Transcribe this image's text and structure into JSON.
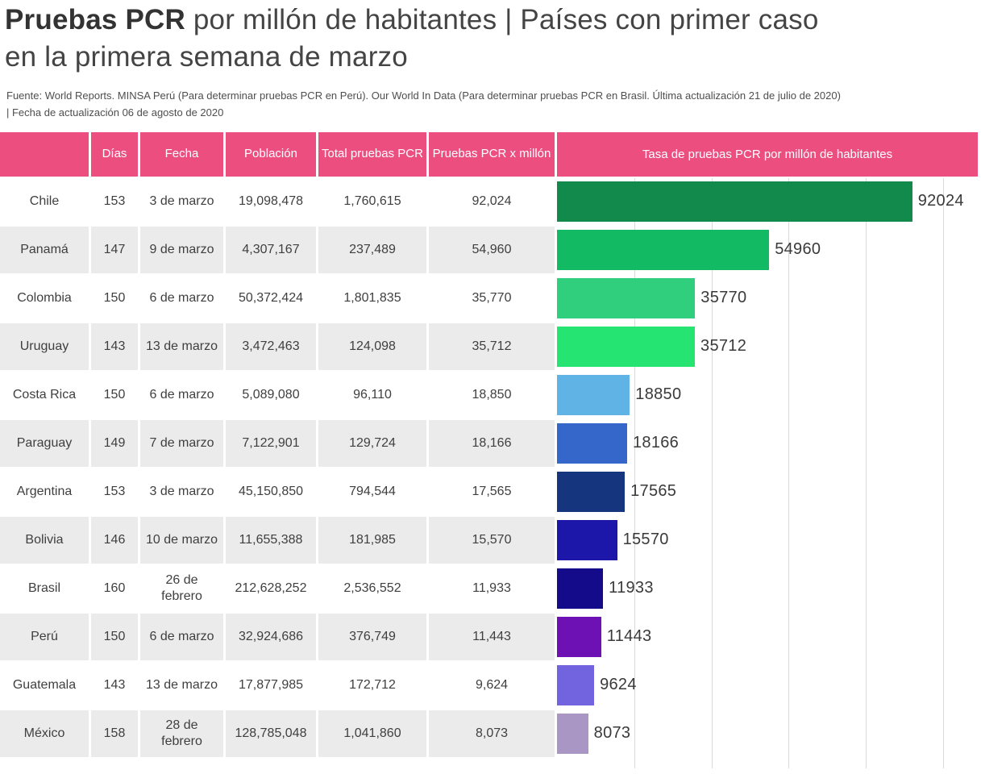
{
  "title": {
    "bold": "Pruebas PCR",
    "rest": " por millón de habitantes | Países con primer caso en la primera semana de marzo"
  },
  "source": {
    "line1": "Fuente: World Reports. MINSA Perú (Para determinar pruebas PCR en Perú). Our World In Data (Para determinar pruebas PCR en Brasil. Última actualización 21 de julio de 2020)",
    "line2": "| Fecha de actualización 06 de agosto de 2020"
  },
  "colors": {
    "header_bg": "#ec4e80",
    "header_text": "#ffffff",
    "row_alt_bg": "#ebebeb",
    "row_bg": "#ffffff",
    "gridline": "#d9d9d9",
    "body_text": "#3f3f3f"
  },
  "table": {
    "headers": [
      "",
      "Días",
      "Fecha",
      "Población",
      "Total pruebas PCR",
      "Pruebas PCR x millón"
    ],
    "rows": [
      {
        "country": "Chile",
        "dias": "153",
        "fecha": "3 de marzo",
        "poblacion": "19,098,478",
        "total_pruebas": "1,760,615",
        "pcr_millon": "92,024"
      },
      {
        "country": "Panamá",
        "dias": "147",
        "fecha": "9 de marzo",
        "poblacion": "4,307,167",
        "total_pruebas": "237,489",
        "pcr_millon": "54,960"
      },
      {
        "country": "Colombia",
        "dias": "150",
        "fecha": "6 de marzo",
        "poblacion": "50,372,424",
        "total_pruebas": "1,801,835",
        "pcr_millon": "35,770"
      },
      {
        "country": "Uruguay",
        "dias": "143",
        "fecha": "13 de marzo",
        "poblacion": "3,472,463",
        "total_pruebas": "124,098",
        "pcr_millon": "35,712"
      },
      {
        "country": "Costa Rica",
        "dias": "150",
        "fecha": "6 de marzo",
        "poblacion": "5,089,080",
        "total_pruebas": "96,110",
        "pcr_millon": "18,850"
      },
      {
        "country": "Paraguay",
        "dias": "149",
        "fecha": "7 de marzo",
        "poblacion": "7,122,901",
        "total_pruebas": "129,724",
        "pcr_millon": "18,166"
      },
      {
        "country": "Argentina",
        "dias": "153",
        "fecha": "3 de marzo",
        "poblacion": "45,150,850",
        "total_pruebas": "794,544",
        "pcr_millon": "17,565"
      },
      {
        "country": "Bolivia",
        "dias": "146",
        "fecha": "10 de marzo",
        "poblacion": "11,655,388",
        "total_pruebas": "181,985",
        "pcr_millon": "15,570"
      },
      {
        "country": "Brasil",
        "dias": "160",
        "fecha": "26 de febrero",
        "poblacion": "212,628,252",
        "total_pruebas": "2,536,552",
        "pcr_millon": "11,933"
      },
      {
        "country": "Perú",
        "dias": "150",
        "fecha": "6 de marzo",
        "poblacion": "32,924,686",
        "total_pruebas": "376,749",
        "pcr_millon": "11,443"
      },
      {
        "country": "Guatemala",
        "dias": "143",
        "fecha": "13 de marzo",
        "poblacion": "17,877,985",
        "total_pruebas": "172,712",
        "pcr_millon": "9,624"
      },
      {
        "country": "México",
        "dias": "158",
        "fecha": "28 de febrero",
        "poblacion": "128,785,048",
        "total_pruebas": "1,041,860",
        "pcr_millon": "8,073"
      }
    ]
  },
  "chart_data": {
    "type": "bar",
    "orientation": "horizontal",
    "title": "Tasa de pruebas PCR por millón de habitantes",
    "categories": [
      "Chile",
      "Panamá",
      "Colombia",
      "Uruguay",
      "Costa Rica",
      "Paraguay",
      "Argentina",
      "Bolivia",
      "Brasil",
      "Perú",
      "Guatemala",
      "México"
    ],
    "values": [
      92024,
      54960,
      35770,
      35712,
      18850,
      18166,
      17565,
      15570,
      11933,
      11443,
      9624,
      8073
    ],
    "bar_colors": [
      "#118a4c",
      "#12ba63",
      "#30cf7d",
      "#25e471",
      "#5fb4e5",
      "#3566c9",
      "#15367f",
      "#1d17a9",
      "#140b8a",
      "#6d11b5",
      "#7164de",
      "#aa96c5"
    ],
    "data_labels": [
      "92024",
      "54960",
      "35770",
      "35712",
      "18850",
      "18166",
      "17565",
      "15570",
      "11933",
      "11443",
      "9624",
      "8073"
    ],
    "xlabel": "",
    "ylabel": "",
    "xlim": [
      0,
      109000
    ],
    "gridlines": [
      20000,
      40000,
      60000,
      80000,
      100000
    ],
    "grid": "vertical",
    "legend": "none"
  }
}
